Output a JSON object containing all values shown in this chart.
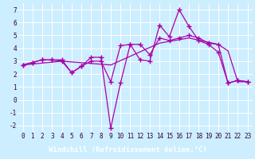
{
  "line1_x": [
    0,
    1,
    2,
    3,
    4,
    5,
    6,
    7,
    8,
    9,
    10,
    11,
    12,
    13,
    14,
    15,
    16,
    17,
    18,
    19,
    20,
    21,
    22,
    23
  ],
  "line1_y": [
    2.7,
    2.9,
    3.1,
    3.1,
    3.0,
    2.1,
    2.6,
    3.3,
    3.3,
    -2.2,
    1.3,
    4.3,
    3.1,
    3.0,
    5.8,
    4.9,
    7.0,
    5.7,
    4.6,
    4.3,
    3.7,
    1.3,
    1.5,
    1.4
  ],
  "line2_x": [
    0,
    1,
    2,
    3,
    4,
    5,
    6,
    7,
    8,
    9,
    10,
    11,
    12,
    13,
    14,
    15,
    16,
    17,
    18,
    19,
    20,
    21,
    22,
    23
  ],
  "line2_y": [
    2.7,
    2.9,
    3.1,
    3.1,
    3.1,
    2.1,
    2.6,
    3.0,
    3.0,
    1.4,
    4.2,
    4.3,
    4.3,
    3.5,
    4.8,
    4.6,
    4.8,
    5.0,
    4.8,
    4.4,
    4.3,
    1.3,
    1.5,
    1.4
  ],
  "line3_x": [
    0,
    4,
    9,
    14,
    17,
    20,
    21,
    22,
    23
  ],
  "line3_y": [
    2.7,
    3.0,
    2.7,
    4.4,
    4.8,
    4.3,
    3.8,
    1.4,
    1.4
  ],
  "line_color": "#aa00aa",
  "marker": "+",
  "markersize": 4,
  "linewidth": 0.9,
  "background_color": "#cceeff",
  "grid_color": "#ffffff",
  "xlabel": "Windchill (Refroidissement éolien,°C)",
  "xlabel_bg": "#660066",
  "xlabel_fg": "#ffffff",
  "xlim": [
    -0.5,
    23.5
  ],
  "ylim": [
    -2.5,
    7.5
  ],
  "yticks": [
    -2,
    -1,
    0,
    1,
    2,
    3,
    4,
    5,
    6,
    7
  ],
  "xticks": [
    0,
    1,
    2,
    3,
    4,
    5,
    6,
    7,
    8,
    9,
    10,
    11,
    12,
    13,
    14,
    15,
    16,
    17,
    18,
    19,
    20,
    21,
    22,
    23
  ],
  "tick_fontsize": 5.5,
  "xlabel_fontsize": 6.5
}
